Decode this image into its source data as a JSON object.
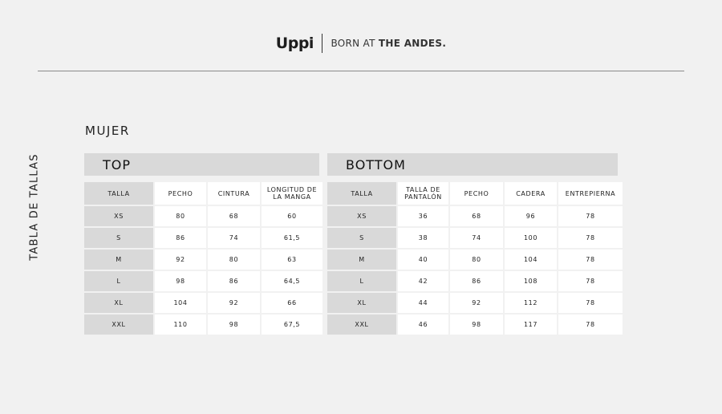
{
  "brand": {
    "logo": "Uppi",
    "tagline_light": "BORN AT",
    "tagline_bold": "THE ANDES."
  },
  "side_title": "TABLA DE TALLAS",
  "section": "MUJER",
  "top": {
    "title": "TOP",
    "headers": [
      "TALLA",
      "PECHO",
      "CINTURA",
      "LONGITUD DE LA MANGA"
    ],
    "rows": [
      [
        "XS",
        "80",
        "68",
        "60"
      ],
      [
        "S",
        "86",
        "74",
        "61,5"
      ],
      [
        "M",
        "92",
        "80",
        "63"
      ],
      [
        "L",
        "98",
        "86",
        "64,5"
      ],
      [
        "XL",
        "104",
        "92",
        "66"
      ],
      [
        "XXL",
        "110",
        "98",
        "67,5"
      ]
    ]
  },
  "bottom": {
    "title": "BOTTOM",
    "headers": [
      "TALLA",
      "TALLA DE PANTALÓN",
      "PECHO",
      "CADERA",
      "ENTREPIERNA"
    ],
    "rows": [
      [
        "XS",
        "36",
        "68",
        "96",
        "78"
      ],
      [
        "S",
        "38",
        "74",
        "100",
        "78"
      ],
      [
        "M",
        "40",
        "80",
        "104",
        "78"
      ],
      [
        "L",
        "42",
        "86",
        "108",
        "78"
      ],
      [
        "XL",
        "44",
        "92",
        "112",
        "78"
      ],
      [
        "XXL",
        "46",
        "98",
        "117",
        "78"
      ]
    ]
  }
}
